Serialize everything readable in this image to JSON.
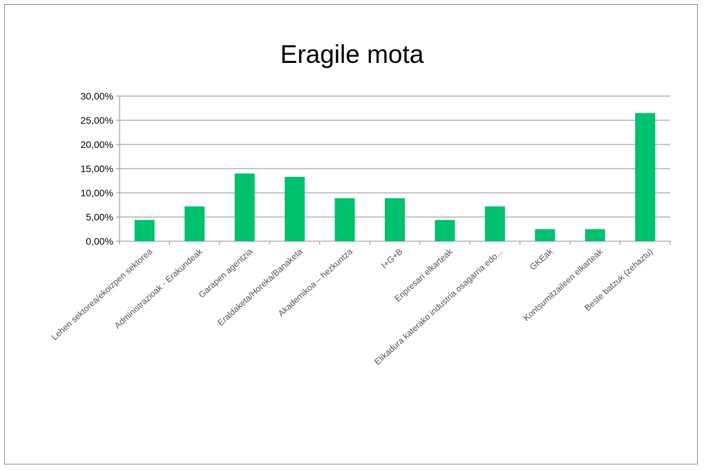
{
  "chart_data": {
    "type": "bar",
    "title": "Eragile mota",
    "categories": [
      "Lehen sektorea/ekoizpen sektorea",
      "Administrazioak - Erakundeak",
      "Garapen agentzia",
      "Eraldaketa/Horeka/Banaketa",
      "Akademikoa – hezkuntza",
      "I+G+B",
      "Enpresari elkarteak",
      "Elikadura katerako industria osagarria edo...",
      "GKEak",
      "Kontsumitzaileen elkarteak",
      "Beste batzuk (zehaztu)"
    ],
    "values": [
      4.4,
      7.2,
      14.0,
      13.3,
      8.9,
      8.9,
      4.4,
      7.2,
      2.5,
      2.5,
      26.5
    ],
    "ylim": [
      0,
      30
    ],
    "yticks": [
      "0,00%",
      "5,00%",
      "10,00%",
      "15,00%",
      "20,00%",
      "25,00%",
      "30,00%"
    ],
    "grid": true,
    "bar_color": "#00c16e"
  }
}
